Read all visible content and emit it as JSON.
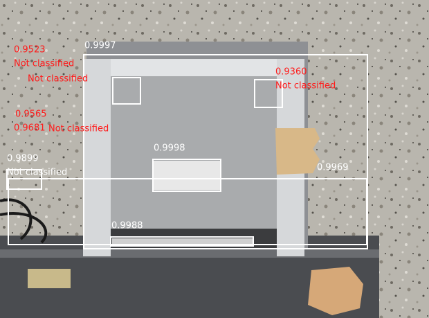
{
  "detections": [
    {
      "score": "0.9997"
    },
    {
      "score": "0.9998"
    },
    {
      "score": "0.9988"
    },
    {
      "score": "0.9899",
      "label": "Not classified"
    },
    {
      "score": "0.9969"
    },
    {
      "score": "0.9360",
      "label": "Not classified"
    },
    {
      "score": "0.9523",
      "label": "Not classified"
    },
    {
      "score": "0.9565",
      "label": "Not classified"
    },
    {
      "score": "0.9681",
      "label": "Not classified"
    }
  ]
}
